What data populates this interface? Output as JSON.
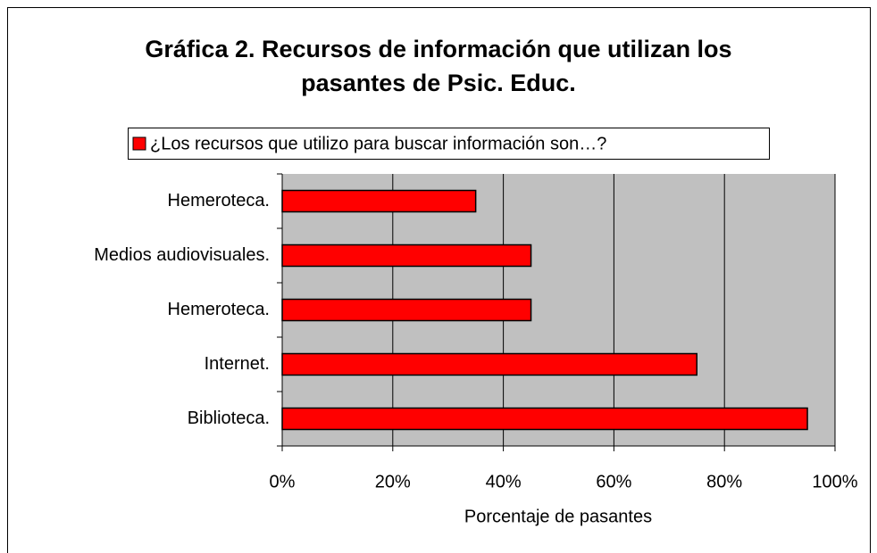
{
  "chart_data": {
    "type": "bar",
    "orientation": "horizontal",
    "title": "Gráfica 2. Recursos de información que utilizan los pasantes de Psic. Educ.",
    "x_label": "Porcentaje de pasantes",
    "categories": [
      "Hemeroteca.",
      "Medios audiovisuales.",
      "Hemeroteca.",
      "Internet.",
      "Biblioteca."
    ],
    "series": [
      {
        "name": "¿Los recursos que utilizo para buscar información son…?",
        "color": "#ff0000",
        "values": [
          35,
          45,
          45,
          75,
          95
        ]
      }
    ],
    "xlim": [
      0,
      100
    ],
    "xticks": [
      {
        "value": 0,
        "label": "0%"
      },
      {
        "value": 20,
        "label": "20%"
      },
      {
        "value": 40,
        "label": "40%"
      },
      {
        "value": 60,
        "label": "60%"
      },
      {
        "value": 80,
        "label": "80%"
      },
      {
        "value": 100,
        "label": "100%"
      }
    ],
    "grid": true,
    "legend": "top"
  }
}
